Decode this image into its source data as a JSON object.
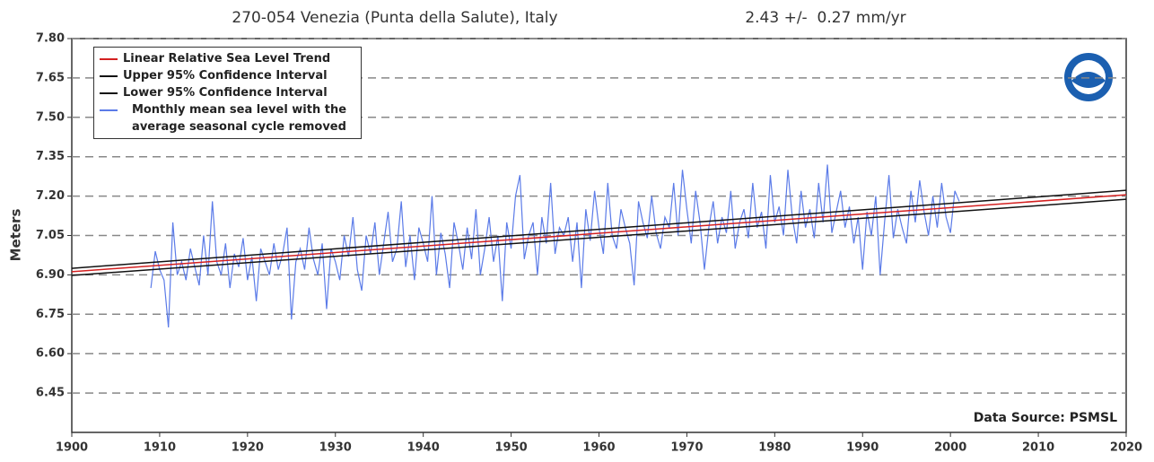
{
  "chart_data": {
    "type": "line",
    "title": "270-054 Venezia (Punta della Salute), Italy",
    "subtitle": "2.43 +/-  0.27 mm/yr",
    "y_label": "Meters",
    "annotation": "Data Source: PSMSL",
    "xlim": [
      1900,
      2020
    ],
    "xticks": [
      1900,
      1910,
      1920,
      1930,
      1940,
      1950,
      1960,
      1970,
      1980,
      1990,
      2000,
      2010,
      2020
    ],
    "ylim": [
      6.3,
      7.8
    ],
    "yticks": [
      {
        "value": 6.45,
        "label": "6.45"
      },
      {
        "value": 6.6,
        "label": "6.60"
      },
      {
        "value": 6.75,
        "label": "6.75"
      },
      {
        "value": 6.9,
        "label": "6.90"
      },
      {
        "value": 7.05,
        "label": "7.05"
      },
      {
        "value": 7.2,
        "label": "7.20"
      },
      {
        "value": 7.35,
        "label": "7.35"
      },
      {
        "value": 7.5,
        "label": "7.50"
      },
      {
        "value": 7.65,
        "label": "7.65"
      },
      {
        "value": 7.8,
        "label": "7.80"
      }
    ],
    "grid": true,
    "legend": "upper left",
    "series": [
      {
        "name": "Linear Relative Sea Level Trend",
        "color": "#d42020",
        "x": [
          1900,
          2020
        ],
        "values": [
          6.912,
          7.205
        ]
      },
      {
        "name": "Upper 95% Confidence Interval",
        "color": "#111111",
        "x": [
          1900,
          2020
        ],
        "values": [
          6.925,
          7.222
        ]
      },
      {
        "name": "Lower 95% Confidence Interval",
        "color": "#111111",
        "x": [
          1900,
          2020
        ],
        "values": [
          6.898,
          7.188
        ]
      },
      {
        "name": "Monthly mean sea level with the average seasonal cycle removed",
        "color": "#5b7be8",
        "x": [
          1909,
          1909.5,
          1910,
          1910.5,
          1911,
          1911.5,
          1912,
          1912.5,
          1913,
          1913.5,
          1914,
          1914.5,
          1915,
          1915.5,
          1916,
          1916.5,
          1917,
          1917.5,
          1918,
          1918.5,
          1919,
          1919.5,
          1920,
          1920.5,
          1921,
          1921.5,
          1922,
          1922.5,
          1923,
          1923.5,
          1924,
          1924.5,
          1925,
          1925.5,
          1926,
          1926.5,
          1927,
          1927.5,
          1928,
          1928.5,
          1929,
          1929.5,
          1930,
          1930.5,
          1931,
          1931.5,
          1932,
          1932.5,
          1933,
          1933.5,
          1934,
          1934.5,
          1935,
          1935.5,
          1936,
          1936.5,
          1937,
          1937.5,
          1938,
          1938.5,
          1939,
          1939.5,
          1940,
          1940.5,
          1941,
          1941.5,
          1942,
          1942.5,
          1943,
          1943.5,
          1944,
          1944.5,
          1945,
          1945.5,
          1946,
          1946.5,
          1947,
          1947.5,
          1948,
          1948.5,
          1949,
          1949.5,
          1950,
          1950.5,
          1951,
          1951.5,
          1952,
          1952.5,
          1953,
          1953.5,
          1954,
          1954.5,
          1955,
          1955.5,
          1956,
          1956.5,
          1957,
          1957.5,
          1958,
          1958.5,
          1959,
          1959.5,
          1960,
          1960.5,
          1961,
          1961.5,
          1962,
          1962.5,
          1963,
          1963.5,
          1964,
          1964.5,
          1965,
          1965.5,
          1966,
          1966.5,
          1967,
          1967.5,
          1968,
          1968.5,
          1969,
          1969.5,
          1970,
          1970.5,
          1971,
          1971.5,
          1972,
          1972.5,
          1973,
          1973.5,
          1974,
          1974.5,
          1975,
          1975.5,
          1976,
          1976.5,
          1977,
          1977.5,
          1978,
          1978.5,
          1979,
          1979.5,
          1980,
          1980.5,
          1981,
          1981.5,
          1982,
          1982.5,
          1983,
          1983.5,
          1984,
          1984.5,
          1985,
          1985.5,
          1986,
          1986.5,
          1987,
          1987.5,
          1988,
          1988.5,
          1989,
          1989.5,
          1990,
          1990.5,
          1991,
          1991.5,
          1992,
          1992.5,
          1993,
          1993.5,
          1994,
          1994.5,
          1995,
          1995.5,
          1996,
          1996.5,
          1997,
          1997.5,
          1998,
          1998.5,
          1999,
          1999.5,
          2000,
          2000.5,
          2001
        ],
        "values": [
          6.85,
          6.99,
          6.92,
          6.88,
          6.7,
          7.1,
          6.9,
          6.95,
          6.88,
          7.0,
          6.93,
          6.86,
          7.05,
          6.9,
          7.18,
          6.95,
          6.9,
          7.02,
          6.85,
          6.98,
          6.93,
          7.04,
          6.88,
          6.97,
          6.8,
          7.0,
          6.95,
          6.9,
          7.02,
          6.92,
          6.98,
          7.08,
          6.73,
          6.95,
          7.0,
          6.92,
          7.08,
          6.96,
          6.9,
          7.02,
          6.77,
          7.0,
          6.95,
          6.88,
          7.05,
          6.97,
          7.12,
          6.92,
          6.84,
          7.05,
          6.98,
          7.1,
          6.9,
          7.02,
          7.14,
          6.95,
          7.0,
          7.18,
          6.93,
          7.05,
          6.88,
          7.08,
          7.02,
          6.95,
          7.2,
          6.9,
          7.06,
          6.98,
          6.85,
          7.1,
          7.02,
          6.92,
          7.08,
          6.96,
          7.15,
          6.9,
          7.0,
          7.12,
          6.95,
          7.05,
          6.8,
          7.1,
          7.0,
          7.2,
          7.28,
          6.96,
          7.05,
          7.1,
          6.9,
          7.12,
          7.02,
          7.25,
          6.98,
          7.08,
          7.05,
          7.12,
          6.95,
          7.1,
          6.85,
          7.15,
          7.03,
          7.22,
          7.08,
          6.98,
          7.25,
          7.05,
          7.0,
          7.15,
          7.08,
          7.02,
          6.86,
          7.18,
          7.1,
          7.04,
          7.2,
          7.06,
          7.0,
          7.12,
          7.08,
          7.25,
          7.05,
          7.3,
          7.15,
          7.02,
          7.22,
          7.1,
          6.92,
          7.08,
          7.18,
          7.02,
          7.12,
          7.06,
          7.22,
          7.0,
          7.1,
          7.15,
          7.04,
          7.25,
          7.08,
          7.14,
          7.0,
          7.28,
          7.1,
          7.16,
          7.05,
          7.3,
          7.12,
          7.02,
          7.22,
          7.08,
          7.15,
          7.04,
          7.25,
          7.1,
          7.32,
          7.06,
          7.14,
          7.22,
          7.08,
          7.16,
          7.02,
          7.12,
          6.92,
          7.14,
          7.05,
          7.2,
          6.9,
          7.1,
          7.28,
          7.04,
          7.15,
          7.08,
          7.02,
          7.22,
          7.1,
          7.26,
          7.14,
          7.05,
          7.2,
          7.08,
          7.25,
          7.12,
          7.06,
          7.22,
          7.18
        ]
      }
    ]
  }
}
